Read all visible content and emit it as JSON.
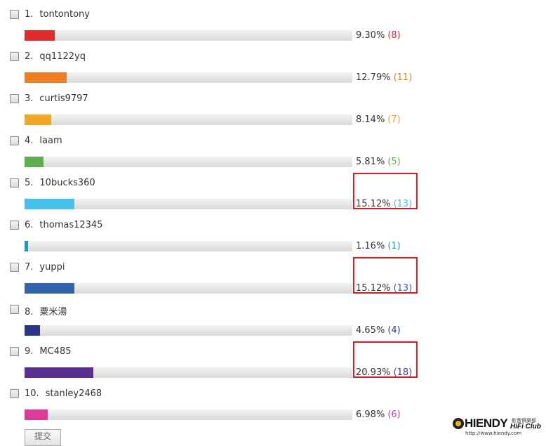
{
  "poll": {
    "options": [
      {
        "number": "1.",
        "name": "tontontony",
        "percent": 9.3,
        "percent_label": "9.30%",
        "count_label": "(8)",
        "color": "#e32b2b",
        "highlighted": false
      },
      {
        "number": "2.",
        "name": "qq1122yq",
        "percent": 12.79,
        "percent_label": "12.79%",
        "count_label": "(11)",
        "color": "#f07d22",
        "highlighted": false
      },
      {
        "number": "3.",
        "name": "curtis9797",
        "percent": 8.14,
        "percent_label": "8.14%",
        "count_label": "(7)",
        "color": "#f3a623",
        "highlighted": false
      },
      {
        "number": "4.",
        "name": "laam",
        "percent": 5.81,
        "percent_label": "5.81%",
        "count_label": "(5)",
        "color": "#5cb04e",
        "highlighted": false
      },
      {
        "number": "5.",
        "name": "10bucks360",
        "percent": 15.12,
        "percent_label": "15.12%",
        "count_label": "(13)",
        "color": "#45c2ee",
        "highlighted": true
      },
      {
        "number": "6.",
        "name": "thomas12345",
        "percent": 1.16,
        "percent_label": "1.16%",
        "count_label": "(1)",
        "color": "#1d9bbd",
        "highlighted": false
      },
      {
        "number": "7.",
        "name": "yuppi",
        "percent": 15.12,
        "percent_label": "15.12%",
        "count_label": "(13)",
        "color": "#3264ae",
        "highlighted": true
      },
      {
        "number": "8.",
        "name": "粟米湯",
        "percent": 4.65,
        "percent_label": "4.65%",
        "count_label": "(4)",
        "color": "#2b3590",
        "highlighted": false
      },
      {
        "number": "9.",
        "name": "MC485",
        "percent": 20.93,
        "percent_label": "20.93%",
        "count_label": "(18)",
        "color": "#5b2e91",
        "highlighted": true
      },
      {
        "number": "10.",
        "name": "stanley2468",
        "percent": 6.98,
        "percent_label": "6.98%",
        "count_label": "(6)",
        "color": "#e0399a",
        "highlighted": false
      }
    ],
    "submit": "提交"
  },
  "watermark": {
    "brand": "HIENDY",
    "subtitle_cn": "影音俱樂部",
    "subtitle": "HiFi Club",
    "url": "http://www.hiendy.com"
  }
}
